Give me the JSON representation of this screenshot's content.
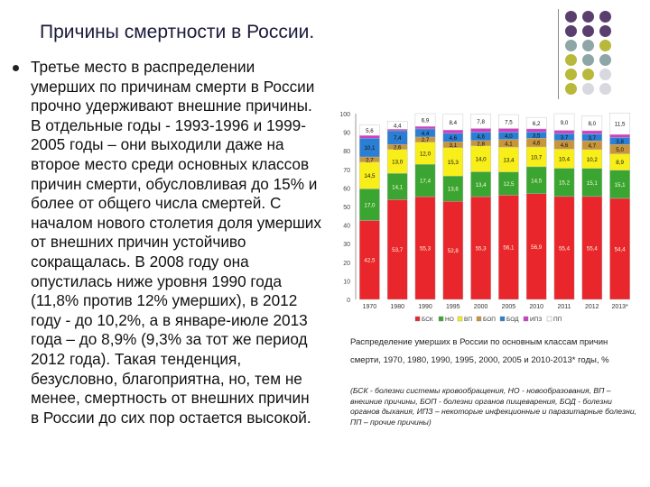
{
  "slide": {
    "title": "Причины смертности в России.",
    "body": "Третье место в распределении умерших по причинам смерти в России прочно удерживают внешние причины. В отдельные годы - 1993-1996 и 1999-2005 годы – они выходили даже на второе место среди основных классов причин смерти, обусловливая до 15% и более от общего числа смертей. С началом нового столетия доля умерших от внешних причин устойчиво сокращалась. В 2008 году она опустилась ниже уровня 1990 года (11,8% против 12% умерших), в 2012 году - до 10,2%, а в январе-июле 2013 года – до 8,9% (9,3% за тот же период 2012 года). Такая тенденция, безусловно, благоприятна, но, тем не менее, смертность от внешних причин в России до сих пор остается высокой.",
    "caption_line1": "Распределение умерших в России по основным классам причин",
    "caption_line2": "смерти, 1970, 1980, 1990, 1995, 2000, 2005 и 2010-2013* годы, %",
    "legend_note": "(БСК - болезни системы кровообращения, НО - новообразования, ВП – внешние причины, БОП - болезни органов пищеварения, БОД - болезни органов дыхания, ИПЗ – некоторые инфекционные и паразитарные болезни, ПП – прочие причины)"
  },
  "decor": {
    "dot_colors": [
      "#5a3f6e",
      "#5a3f6e",
      "#5a3f6e",
      "#5a3f6e",
      "#5a3f6e",
      "#5a3f6e",
      "#8fa6a6",
      "#8fa6a6",
      "#b8b83a",
      "#b8b83a",
      "#8fa6a6",
      "#8fa6a6",
      "#b8b83a",
      "#b8b83a",
      "#d8d8e0",
      "#b8b83a",
      "#d8d8e0",
      "#d8d8e0"
    ]
  },
  "chart_data": {
    "type": "bar",
    "stacked": true,
    "title": "",
    "xlabel": "",
    "ylabel": "",
    "ylim": [
      0,
      100
    ],
    "yticks": [
      "0",
      "10",
      "20",
      "30",
      "40",
      "50",
      "60",
      "70",
      "80",
      "90",
      "100"
    ],
    "categories": [
      "1970",
      "1980",
      "1990",
      "1995",
      "2000",
      "2005",
      "2010",
      "2011",
      "2012",
      "2013*"
    ],
    "series": [
      {
        "name": "БСК",
        "color": "#e8262b",
        "values": [
          42.5,
          53.7,
          55.3,
          52.8,
          55.3,
          56.1,
          56.9,
          55.4,
          55.4,
          54.4
        ],
        "labels": [
          "42,5",
          "53,7",
          "55,3",
          "52,8",
          "55,3",
          "56,1",
          "56,9",
          "55,4",
          "55,4",
          "54,4"
        ]
      },
      {
        "name": "НО",
        "color": "#3aa530",
        "values": [
          17.0,
          14.1,
          17.4,
          13.6,
          13.4,
          12.5,
          14.5,
          15.2,
          15.1,
          15.1
        ],
        "labels": [
          "17,0",
          "14,1",
          "17,4",
          "13,6",
          "13,4",
          "12,5",
          "14,5",
          "15,2",
          "15,1",
          "15,1"
        ]
      },
      {
        "name": "ВП",
        "color": "#f7ee1a",
        "values": [
          14.5,
          13.0,
          12.0,
          15.3,
          14.0,
          13.4,
          10.7,
          10.4,
          10.2,
          8.9
        ],
        "labels": [
          "14,5",
          "13,0",
          "12,0",
          "15,3",
          "14,0",
          "13,4",
          "10,7",
          "10,4",
          "10,2",
          "8,9"
        ]
      },
      {
        "name": "БОП",
        "color": "#c9953a",
        "values": [
          2.7,
          2.6,
          2.7,
          3.1,
          2.8,
          4.1,
          4.6,
          4.6,
          4.7,
          5.0
        ],
        "labels": [
          "2,7",
          "2,6",
          "2,7",
          "3,1",
          "2,8",
          "4,1",
          "4,6",
          "4,6",
          "4,7",
          "5,0"
        ]
      },
      {
        "name": "БОД",
        "color": "#2a7fd4",
        "values": [
          10.1,
          7.4,
          4.4,
          4.6,
          4.6,
          4.0,
          3.5,
          3.7,
          3.7,
          3.8
        ],
        "labels": [
          "10,1",
          "7,4",
          "4,4",
          "4,6",
          "4,6",
          "4,0",
          "3,5",
          "3,7",
          "3,7",
          "3,8"
        ]
      },
      {
        "name": "ИПЗ",
        "color": "#d23cc8",
        "values": [
          1.4,
          0.8,
          1.3,
          1.8,
          1.9,
          1.9,
          1.6,
          1.7,
          1.7,
          1.6
        ],
        "labels": [
          "",
          "",
          "",
          "",
          "",
          "",
          "",
          "",
          "",
          ""
        ]
      },
      {
        "name": "ПП",
        "color": "#ffffff",
        "values": [
          5.6,
          4.4,
          6.9,
          8.4,
          7.8,
          7.5,
          6.2,
          9.0,
          8.0,
          11.5
        ],
        "labels": [
          "5,6",
          "4,4",
          "6,9",
          "8,4",
          "7,8",
          "7,5",
          "6,2",
          "9,0",
          "8,0",
          "11,5"
        ]
      }
    ],
    "legend": [
      "БСК",
      "НО",
      "ВП",
      "БОП",
      "БОД",
      "ИПЗ",
      "ПП"
    ],
    "legend_position": "bottom",
    "grid": false
  }
}
